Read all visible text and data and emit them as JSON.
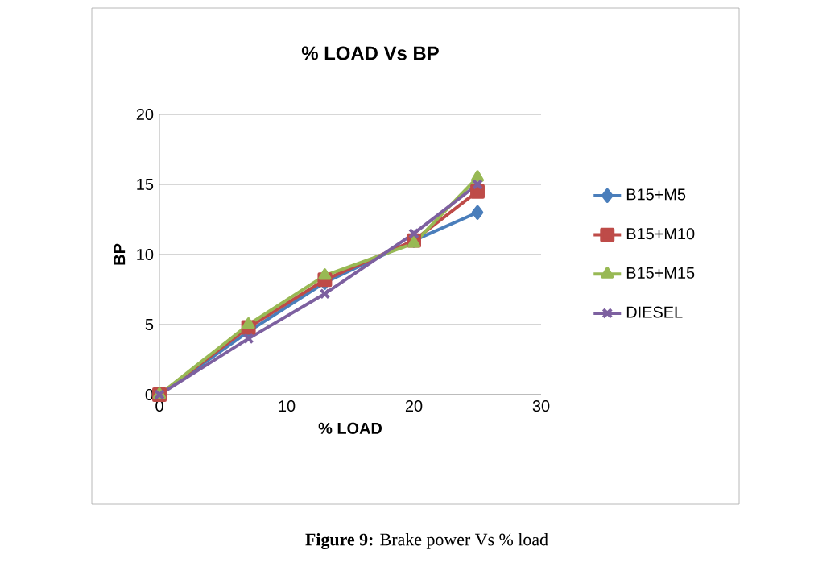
{
  "chart_data": {
    "type": "line",
    "title": "% LOAD Vs BP",
    "xlabel": "% LOAD",
    "ylabel": "BP",
    "x": [
      0,
      7,
      13,
      20,
      25
    ],
    "series": [
      {
        "name": "B15+M5",
        "color": "#4a7ebb",
        "marker": "diamond",
        "values": [
          0,
          4.5,
          8,
          11,
          13
        ]
      },
      {
        "name": "B15+M10",
        "color": "#be4b48",
        "marker": "square",
        "values": [
          0,
          4.8,
          8.2,
          11,
          14.5
        ]
      },
      {
        "name": "B15+M15",
        "color": "#98b954",
        "marker": "triangle",
        "values": [
          0,
          5,
          8.5,
          10.8,
          15.5
        ]
      },
      {
        "name": "DIESEL",
        "color": "#7d60a0",
        "marker": "cross",
        "values": [
          0,
          4,
          7.2,
          11.5,
          15
        ]
      }
    ],
    "xlim": [
      0,
      30
    ],
    "ylim": [
      0,
      20
    ],
    "xticks": [
      0,
      10,
      20,
      30
    ],
    "yticks": [
      0,
      5,
      10,
      15,
      20
    ],
    "grid": "y",
    "legend": "right",
    "line_style": "solid",
    "annotations": [
      "**Figure 9:** Brake power Vs % load"
    ]
  }
}
